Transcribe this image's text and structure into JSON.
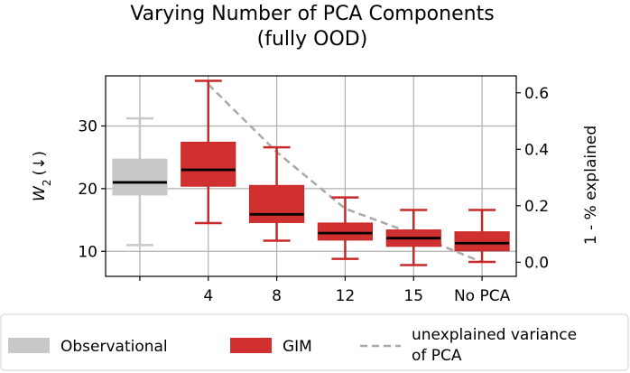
{
  "chart_data": {
    "type": "box",
    "title": "Varying Number of PCA Components",
    "subtitle": "(fully OOD)",
    "ylabel_left": "W",
    "ylabel_left_sub": "2",
    "ylabel_left_suffix": "(↓)",
    "ylabel_right": "1 - % explained",
    "ylim_left": [
      6,
      38
    ],
    "ylim_right": [
      -0.05,
      0.66
    ],
    "left_ticks": [
      "10",
      "20",
      "30"
    ],
    "right_ticks": [
      "0.0",
      "0.2",
      "0.4",
      "0.6"
    ],
    "categories": [
      "",
      "4",
      "8",
      "12",
      "15",
      "No PCA"
    ],
    "grid": true,
    "legend_placement": "bottom",
    "boxes": [
      {
        "series": "Observational",
        "category": "",
        "whisker_low": 11,
        "q1": 19,
        "median": 21,
        "q3": 24.7,
        "whisker_high": 31.2
      },
      {
        "series": "GIM",
        "category": "4",
        "whisker_low": 14.5,
        "q1": 20.4,
        "median": 23,
        "q3": 27.4,
        "whisker_high": 37.2
      },
      {
        "series": "GIM",
        "category": "8",
        "whisker_low": 11.7,
        "q1": 14.6,
        "median": 15.9,
        "q3": 20.5,
        "whisker_high": 26.6
      },
      {
        "series": "GIM",
        "category": "12",
        "whisker_low": 8.8,
        "q1": 11.8,
        "median": 12.9,
        "q3": 14.5,
        "whisker_high": 18.6
      },
      {
        "series": "GIM",
        "category": "15",
        "whisker_low": 7.8,
        "q1": 10.8,
        "median": 12.1,
        "q3": 13.4,
        "whisker_high": 16.6
      },
      {
        "series": "GIM",
        "category": "No PCA",
        "whisker_low": 8.3,
        "q1": 10.1,
        "median": 11.3,
        "q3": 13.1,
        "whisker_high": 16.6
      }
    ],
    "line": {
      "series": "unexplained variance of PCA",
      "axis": "right",
      "points": [
        {
          "category": "4",
          "value": 0.63
        },
        {
          "category": "8",
          "value": 0.39
        },
        {
          "category": "12",
          "value": 0.19
        },
        {
          "category": "15",
          "value": 0.1
        },
        {
          "category": "No PCA",
          "value": 0.0
        }
      ]
    },
    "legend": [
      {
        "name": "Observational",
        "symbol": "patch"
      },
      {
        "name": "GIM",
        "symbol": "patch"
      },
      {
        "name": "unexplained variance",
        "name_line2": "of PCA",
        "symbol": "dashed-line"
      }
    ],
    "colors": {
      "observational_box": "#c8c8c8",
      "gim_box": "#d03030",
      "gim_edge": "#c82828",
      "median": "#000000",
      "pca_line": "#a8a8a8",
      "grid": "#b0b0b0"
    }
  }
}
